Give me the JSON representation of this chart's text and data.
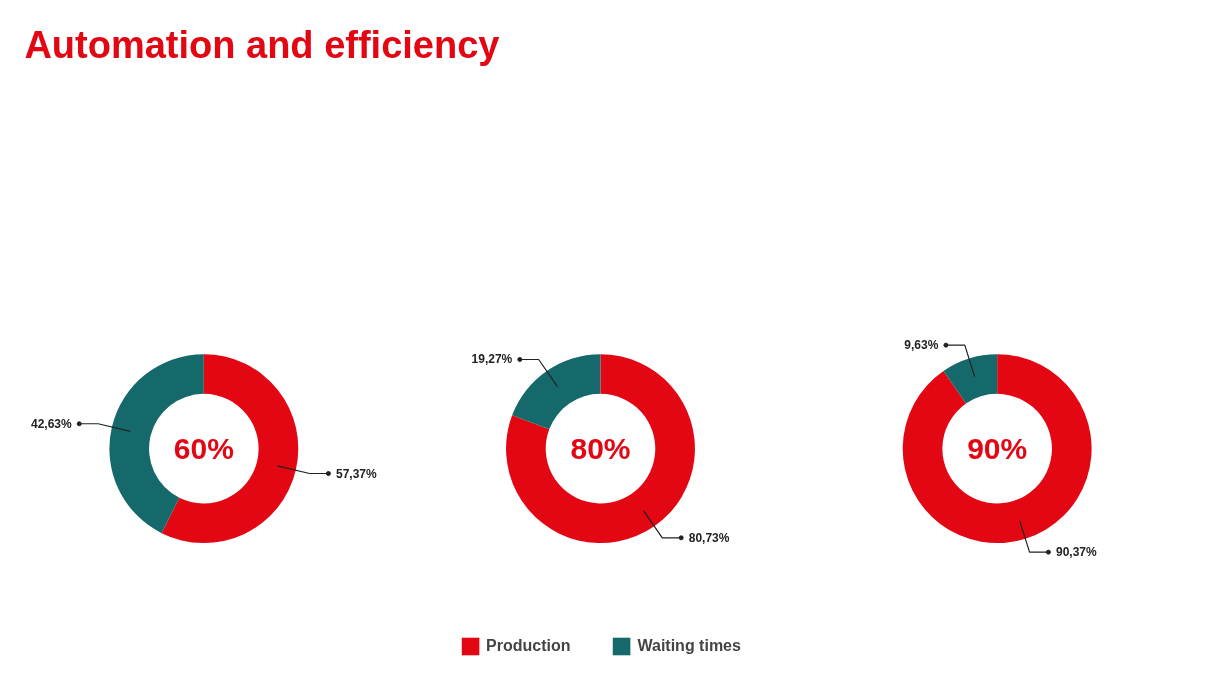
{
  "chart_data": [
    {
      "type": "donut",
      "title": "Automation and efficiency",
      "categories": [
        "Production",
        "Waiting times"
      ],
      "values": [
        57.37,
        42.63
      ],
      "colors": [
        "#e30613",
        "#16696a"
      ],
      "value_labels": [
        "57,37%",
        "42,63%"
      ],
      "annotations": [
        "60%"
      ],
      "legend": "bottom"
    },
    {
      "type": "donut",
      "categories": [
        null,
        null
      ],
      "values": [
        80.73,
        19.27
      ],
      "colors": [
        "#e30613",
        "#16696a"
      ],
      "value_labels": [
        "80,73%",
        "19,27%"
      ],
      "annotations": [
        "80%"
      ]
    },
    {
      "type": "donut",
      "categories": [
        null,
        null
      ],
      "values": [
        90.37,
        9.63
      ],
      "colors": [
        "#e30613",
        "#16696a"
      ],
      "value_labels": [
        "90,37%",
        "9,63%"
      ],
      "annotations": [
        "90%"
      ]
    }
  ]
}
